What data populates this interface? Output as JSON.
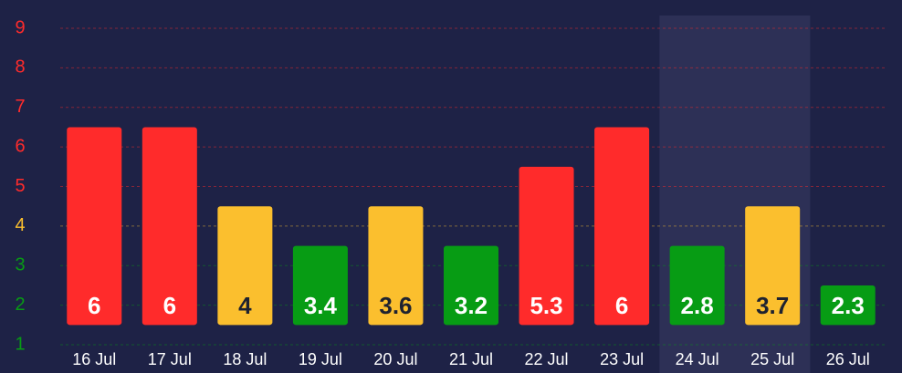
{
  "chart_data": {
    "type": "bar",
    "categories": [
      "16 Jul",
      "17 Jul",
      "18 Jul",
      "19 Jul",
      "20 Jul",
      "21 Jul",
      "22 Jul",
      "23 Jul",
      "24 Jul",
      "25 Jul",
      "26 Jul"
    ],
    "values": [
      6,
      6,
      4,
      3.4,
      3.6,
      3.2,
      5.3,
      6,
      2.8,
      3.7,
      2.3
    ],
    "bar_base": 1.5,
    "bar_top": [
      6.5,
      6.5,
      4.5,
      3.5,
      4.5,
      3.5,
      5.5,
      6.5,
      3.5,
      4.5,
      2.5
    ],
    "colors": [
      "#ff2b2b",
      "#ff2b2b",
      "#fbbf2e",
      "#079c14",
      "#fbbf2e",
      "#079c14",
      "#ff2b2b",
      "#ff2b2b",
      "#079c14",
      "#fbbf2e",
      "#079c14"
    ],
    "ylim": [
      1,
      9
    ],
    "yticks": [
      1,
      2,
      3,
      4,
      5,
      6,
      7,
      8,
      9
    ],
    "ytick_colors": [
      "#079c14",
      "#079c14",
      "#079c14",
      "#fbbf2e",
      "#ff2b2b",
      "#ff2b2b",
      "#ff2b2b",
      "#ff2b2b",
      "#ff2b2b"
    ],
    "highlight_categories": [
      8,
      9
    ],
    "grid": true
  }
}
